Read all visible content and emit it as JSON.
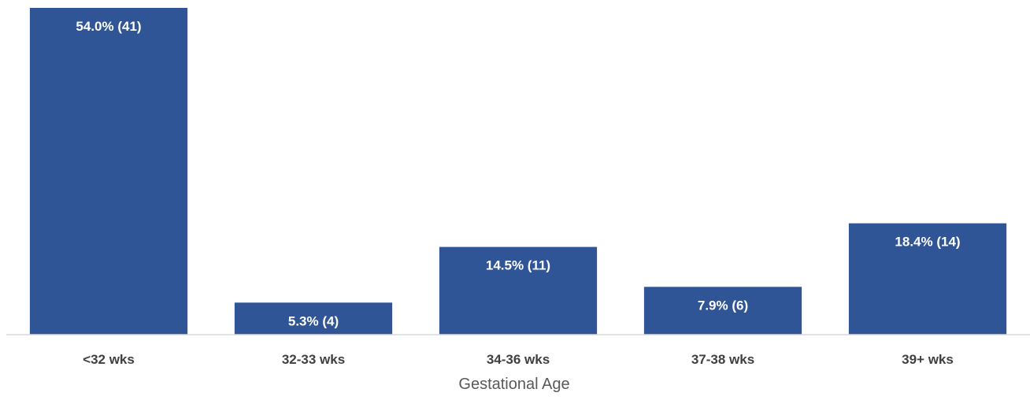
{
  "chart_data": {
    "type": "bar",
    "title": "",
    "xlabel": "Gestational Age",
    "ylabel": "",
    "categories": [
      "<32 wks",
      "32-33 wks",
      "34-36 wks",
      "37-38 wks",
      "39+ wks"
    ],
    "values": [
      54.0,
      5.3,
      14.5,
      7.9,
      18.4
    ],
    "counts": [
      41,
      4,
      11,
      6,
      14
    ],
    "data_labels": [
      "54.0% (41)",
      "5.3% (4)",
      "14.5% (11)",
      "7.9% (6)",
      "18.4% (14)"
    ],
    "unit": "%",
    "ylim": [
      0,
      54
    ],
    "grid": false,
    "legend": "none",
    "bar_color": "#2F5597",
    "axis_color": "#D9D9D9"
  }
}
